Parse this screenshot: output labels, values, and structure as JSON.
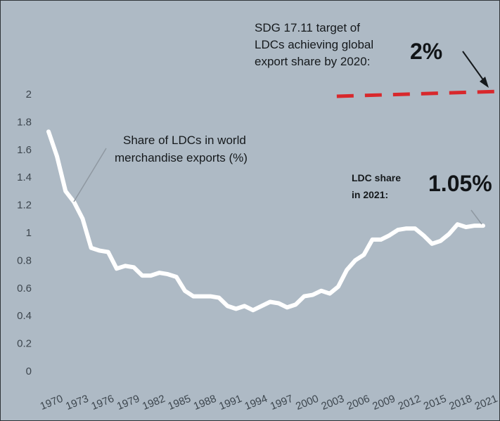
{
  "chart_data": {
    "type": "line",
    "title": "",
    "xlabel": "",
    "ylabel": "",
    "ylim": [
      0,
      2
    ],
    "yticks": [
      "0",
      "0.2",
      "0.4",
      "0.6",
      "0.8",
      "1",
      "1.2",
      "1.4",
      "1.6",
      "1.8",
      "2"
    ],
    "xticks": [
      "1970",
      "1973",
      "1976",
      "1979",
      "1982",
      "1985",
      "1988",
      "1991",
      "1994",
      "1997",
      "2000",
      "2003",
      "2006",
      "2009",
      "2012",
      "2015",
      "2018",
      "2021"
    ],
    "grid": false,
    "series": [
      {
        "name": "Share of LDCs in world merchandise exports (%)",
        "color": "#ffffff",
        "x": [
          1970,
          1971,
          1972,
          1973,
          1974,
          1975,
          1976,
          1977,
          1978,
          1979,
          1980,
          1981,
          1982,
          1983,
          1984,
          1985,
          1986,
          1987,
          1988,
          1989,
          1990,
          1991,
          1992,
          1993,
          1994,
          1995,
          1996,
          1997,
          1998,
          1999,
          2000,
          2001,
          2002,
          2003,
          2004,
          2005,
          2006,
          2007,
          2008,
          2009,
          2010,
          2011,
          2012,
          2013,
          2014,
          2015,
          2016,
          2017,
          2018,
          2019,
          2020,
          2021
        ],
        "values": [
          1.73,
          1.55,
          1.3,
          1.22,
          1.1,
          0.89,
          0.87,
          0.86,
          0.74,
          0.76,
          0.75,
          0.69,
          0.69,
          0.71,
          0.7,
          0.68,
          0.58,
          0.54,
          0.54,
          0.54,
          0.53,
          0.47,
          0.45,
          0.47,
          0.44,
          0.47,
          0.5,
          0.49,
          0.46,
          0.48,
          0.54,
          0.55,
          0.58,
          0.56,
          0.61,
          0.73,
          0.8,
          0.84,
          0.95,
          0.95,
          0.98,
          1.02,
          1.03,
          1.03,
          0.98,
          0.92,
          0.94,
          0.99,
          1.06,
          1.04,
          1.05,
          1.05
        ]
      }
    ],
    "target": {
      "value": 2,
      "color": "#d8282c",
      "style": "dashed",
      "x_start": 2003,
      "label_lines": [
        "SDG 17.11 target of",
        "LDCs achieving global",
        "export share by 2020:"
      ],
      "label_value": "2%"
    },
    "annotations": {
      "series_label_lines": [
        "Share of LDCs in world",
        "merchandise exports (%)"
      ],
      "ldc_share_lines": [
        "LDC share",
        "in 2021:"
      ],
      "ldc_share_value": "1.05%"
    }
  }
}
